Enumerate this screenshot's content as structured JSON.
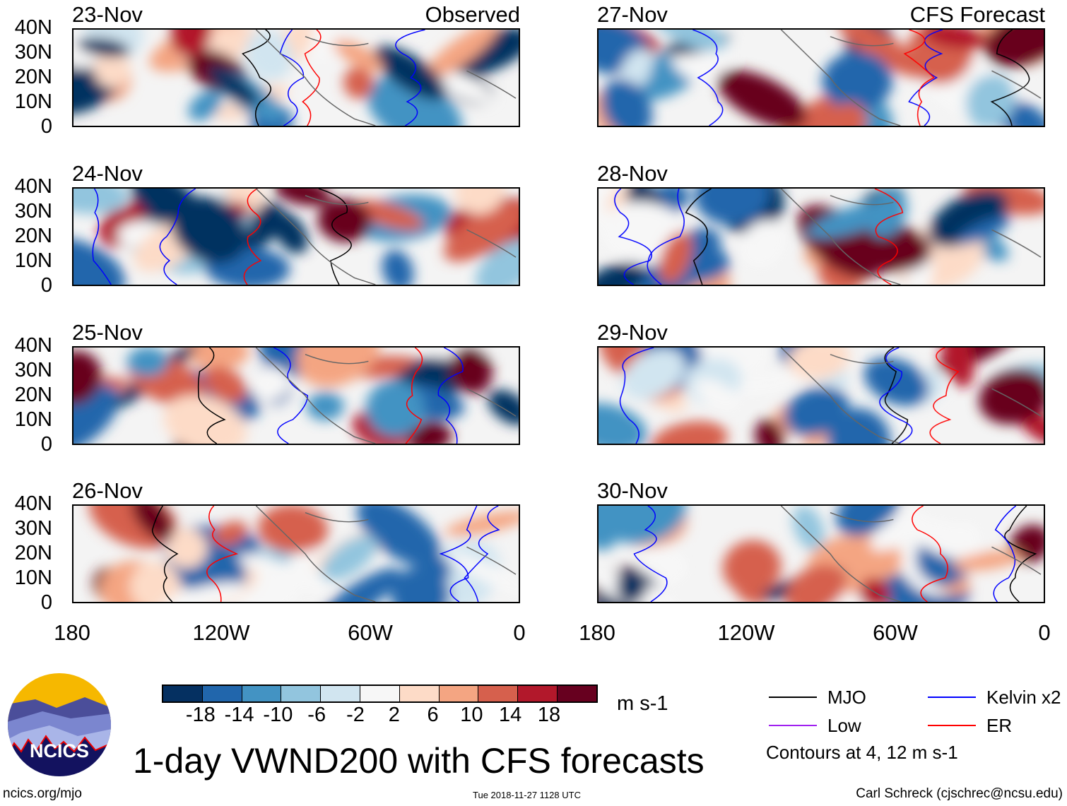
{
  "panels": {
    "left": [
      {
        "date": "23-Nov",
        "corner": "Observed"
      },
      {
        "date": "24-Nov"
      },
      {
        "date": "25-Nov"
      },
      {
        "date": "26-Nov"
      }
    ],
    "right": [
      {
        "date": "27-Nov",
        "corner": "CFS Forecast"
      },
      {
        "date": "28-Nov"
      },
      {
        "date": "29-Nov"
      },
      {
        "date": "30-Nov"
      }
    ]
  },
  "lat_labels": [
    "40N",
    "30N",
    "20N",
    "10N",
    "0"
  ],
  "lon_labels": [
    "180",
    "120W",
    "60W",
    "0"
  ],
  "colorbar": {
    "colors": [
      "#053061",
      "#2166ac",
      "#4393c3",
      "#92c5de",
      "#d1e5f0",
      "#f7f7f7",
      "#fddbc7",
      "#f4a582",
      "#d6604d",
      "#b2182b",
      "#67001f"
    ],
    "labels": [
      "-18",
      "-14",
      "-10",
      "-6",
      "-2",
      "2",
      "6",
      "10",
      "14",
      "18"
    ],
    "units": "m s-1"
  },
  "legend": {
    "items": [
      {
        "label": "MJO",
        "color": "#000000"
      },
      {
        "label": "Kelvin x2",
        "color": "#0000ff"
      },
      {
        "label": "Low",
        "color": "#a020f0"
      },
      {
        "label": "ER",
        "color": "#ff0000"
      }
    ],
    "contours_note": "Contours at 4, 12 m s-1"
  },
  "title": "1-day VWND200 with CFS forecasts",
  "logo_text": "NCICS",
  "footer": {
    "url": "ncics.org/mjo",
    "timestamp": "Tue 2018-11-27 1128 UTC",
    "credit": "Carl Schreck (cjschrec@ncsu.edu)"
  }
}
